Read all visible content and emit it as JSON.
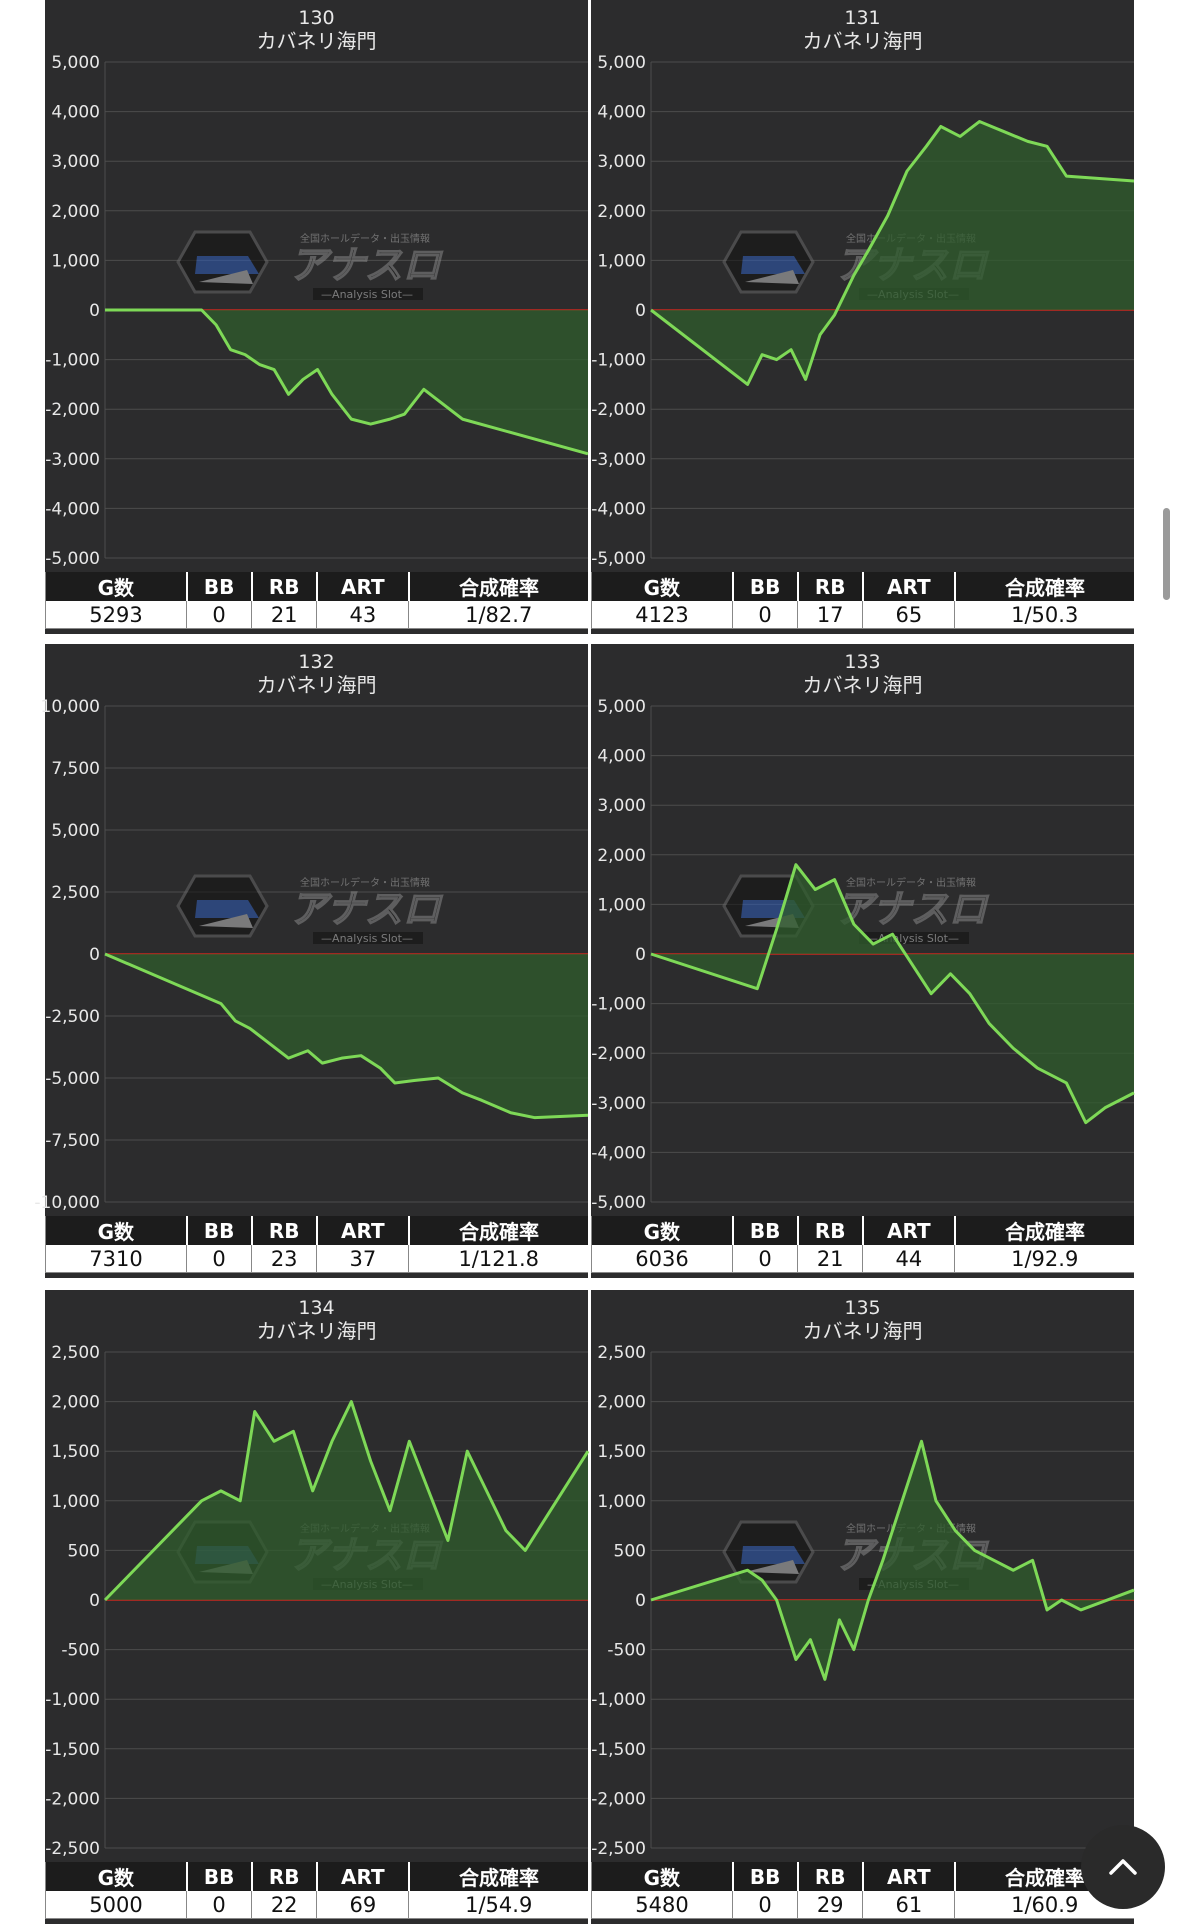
{
  "stats_headers": [
    "G数",
    "BB",
    "RB",
    "ART",
    "合成確率"
  ],
  "colors": {
    "panel_bg": "#2c2c2d",
    "grid": "#4d4d4d",
    "zero_line": "#c8281e",
    "series_line": "#7ed957",
    "series_fill": "#2f5c2c",
    "text": "#e8e8e8"
  },
  "logo": {
    "text": "アナスロ",
    "tagline": "全国ホールデータ・出玉情報",
    "subtitle": "Analysis Slot"
  },
  "ui": {
    "scroll_top_icon": "chevron-up-icon"
  },
  "chart_data": [
    {
      "type": "area",
      "id": "130",
      "title": "130",
      "subtitle": "カバネリ海門",
      "ylim": [
        -5000,
        5000
      ],
      "yticks": [
        "5,000",
        "4,000",
        "3,000",
        "2,000",
        "1,000",
        "0",
        "-1,000",
        "-2,000",
        "-3,000",
        "-4,000",
        "-5,000"
      ],
      "x": [
        0,
        0.2,
        0.23,
        0.26,
        0.29,
        0.32,
        0.35,
        0.38,
        0.41,
        0.44,
        0.47,
        0.51,
        0.55,
        0.59,
        0.62,
        0.66,
        0.7,
        0.74,
        1.0
      ],
      "values": [
        0,
        0,
        -300,
        -800,
        -900,
        -1100,
        -1200,
        -1700,
        -1400,
        -1200,
        -1700,
        -2200,
        -2300,
        -2200,
        -2100,
        -1600,
        -1900,
        -2200,
        -2900
      ],
      "stats": {
        "games": "5293",
        "bb": "0",
        "rb": "21",
        "art": "43",
        "rate": "1/82.7"
      }
    },
    {
      "type": "area",
      "id": "131",
      "title": "131",
      "subtitle": "カバネリ海門",
      "ylim": [
        -5000,
        5000
      ],
      "yticks": [
        "5,000",
        "4,000",
        "3,000",
        "2,000",
        "1,000",
        "0",
        "-1,000",
        "-2,000",
        "-3,000",
        "-4,000",
        "-5,000"
      ],
      "x": [
        0,
        0.2,
        0.23,
        0.26,
        0.29,
        0.32,
        0.35,
        0.38,
        0.42,
        0.45,
        0.49,
        0.53,
        0.57,
        0.6,
        0.64,
        0.68,
        0.73,
        0.78,
        0.82,
        0.86,
        1.0
      ],
      "values": [
        0,
        -1500,
        -900,
        -1000,
        -800,
        -1400,
        -500,
        -100,
        700,
        1200,
        1900,
        2800,
        3300,
        3700,
        3500,
        3800,
        3600,
        3400,
        3300,
        2700,
        2600
      ],
      "stats": {
        "games": "4123",
        "bb": "0",
        "rb": "17",
        "art": "65",
        "rate": "1/50.3"
      }
    },
    {
      "type": "area",
      "id": "132",
      "title": "132",
      "subtitle": "カバネリ海門",
      "ylim": [
        -10000,
        10000
      ],
      "yticks": [
        "10,000",
        "7,500",
        "5,000",
        "2,500",
        "0",
        "-2,500",
        "-5,000",
        "-7,500",
        "-10,000"
      ],
      "x": [
        0,
        0.24,
        0.27,
        0.3,
        0.34,
        0.38,
        0.42,
        0.45,
        0.49,
        0.53,
        0.57,
        0.6,
        0.64,
        0.69,
        0.74,
        0.78,
        0.84,
        0.89,
        1.0
      ],
      "values": [
        0,
        -2000,
        -2700,
        -3000,
        -3600,
        -4200,
        -3900,
        -4400,
        -4200,
        -4100,
        -4600,
        -5200,
        -5100,
        -5000,
        -5600,
        -5900,
        -6400,
        -6600,
        -6500
      ],
      "stats": {
        "games": "7310",
        "bb": "0",
        "rb": "23",
        "art": "37",
        "rate": "1/121.8"
      }
    },
    {
      "type": "area",
      "id": "133",
      "title": "133",
      "subtitle": "カバネリ海門",
      "ylim": [
        -5000,
        5000
      ],
      "yticks": [
        "5,000",
        "4,000",
        "3,000",
        "2,000",
        "1,000",
        "0",
        "-1,000",
        "-2,000",
        "-3,000",
        "-4,000",
        "-5,000"
      ],
      "x": [
        0,
        0.22,
        0.26,
        0.3,
        0.34,
        0.38,
        0.42,
        0.46,
        0.5,
        0.54,
        0.58,
        0.62,
        0.66,
        0.7,
        0.75,
        0.8,
        0.86,
        0.9,
        0.94,
        1.0
      ],
      "values": [
        0,
        -700,
        500,
        1800,
        1300,
        1500,
        600,
        200,
        400,
        -200,
        -800,
        -400,
        -800,
        -1400,
        -1900,
        -2300,
        -2600,
        -3400,
        -3100,
        -2800
      ],
      "stats": {
        "games": "6036",
        "bb": "0",
        "rb": "21",
        "art": "44",
        "rate": "1/92.9"
      }
    },
    {
      "type": "area",
      "id": "134",
      "title": "134",
      "subtitle": "カバネリ海門",
      "ylim": [
        -2500,
        2500
      ],
      "yticks": [
        "2,500",
        "2,000",
        "1,500",
        "1,000",
        "500",
        "0",
        "-500",
        "-1,000",
        "-1,500",
        "-2,000",
        "-2,500"
      ],
      "x": [
        0,
        0.2,
        0.24,
        0.28,
        0.31,
        0.35,
        0.39,
        0.43,
        0.47,
        0.51,
        0.55,
        0.59,
        0.63,
        0.67,
        0.71,
        0.75,
        0.79,
        0.83,
        0.87,
        1.0
      ],
      "values": [
        0,
        1000,
        1100,
        1000,
        1900,
        1600,
        1700,
        1100,
        1600,
        2000,
        1400,
        900,
        1600,
        1100,
        600,
        1500,
        1100,
        700,
        500,
        1500
      ],
      "stats": {
        "games": "5000",
        "bb": "0",
        "rb": "22",
        "art": "69",
        "rate": "1/54.9"
      }
    },
    {
      "type": "area",
      "id": "135",
      "title": "135",
      "subtitle": "カバネリ海門",
      "ylim": [
        -2500,
        2500
      ],
      "yticks": [
        "2,500",
        "2,000",
        "1,500",
        "1,000",
        "500",
        "0",
        "-500",
        "-1,000",
        "-1,500",
        "-2,000",
        "-2,500"
      ],
      "x": [
        0,
        0.2,
        0.23,
        0.26,
        0.3,
        0.33,
        0.36,
        0.39,
        0.42,
        0.45,
        0.48,
        0.52,
        0.56,
        0.59,
        0.63,
        0.67,
        0.71,
        0.75,
        0.79,
        0.82,
        0.85,
        0.89,
        1.0
      ],
      "values": [
        0,
        300,
        200,
        0,
        -600,
        -400,
        -800,
        -200,
        -500,
        0,
        400,
        1000,
        1600,
        1000,
        700,
        500,
        400,
        300,
        400,
        -100,
        0,
        -100,
        100
      ],
      "stats": {
        "games": "5480",
        "bb": "0",
        "rb": "29",
        "art": "61",
        "rate": "1/60.9"
      }
    }
  ]
}
